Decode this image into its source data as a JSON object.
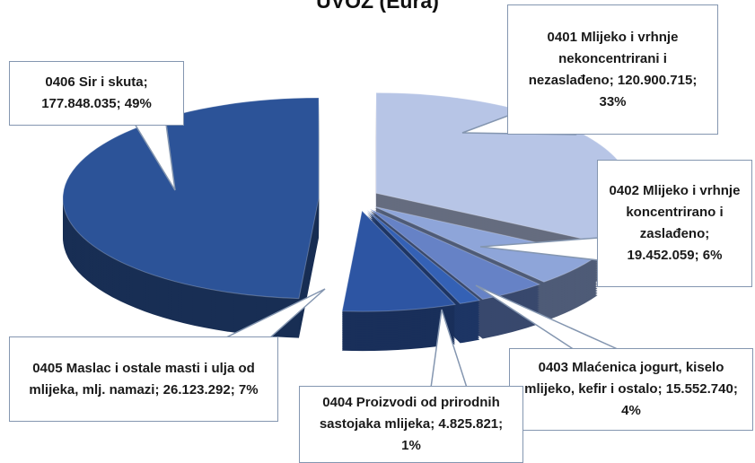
{
  "chart_data": {
    "type": "pie",
    "title": "UVOZ (Eura)",
    "categories": [
      "0401 Mlijeko i vrhnje nekoncentrirani i nezaslađeno",
      "0402 Mlijeko i vrhnje koncentrirano i zaslađeno",
      "0403 Mlaćenica jogurt, kiselo mlijeko, kefir i ostalo",
      "0404 Proizvodi od prirodnih sastojaka mlijeka",
      "0405 Maslac i ostale masti i ulja od mlijeka, mlj. namazi",
      "0406 Sir i skuta"
    ],
    "values": [
      120900715,
      19452059,
      15552740,
      4825821,
      26123292,
      177848035
    ],
    "value_labels": [
      "120.900.715",
      "19.452.059",
      "15.552.740",
      "4.825.821",
      "26.123.292",
      "177.848.035"
    ],
    "percents": [
      33,
      6,
      4,
      1,
      7,
      49
    ],
    "percent_labels": [
      "33%",
      "6%",
      "4%",
      "1%",
      "7%",
      "49%"
    ],
    "separator": ";",
    "colors": [
      "#b7c5e6",
      "#8ea5d9",
      "#6682c6",
      "#3461b5",
      "#2d55a3",
      "#2c5398"
    ]
  }
}
